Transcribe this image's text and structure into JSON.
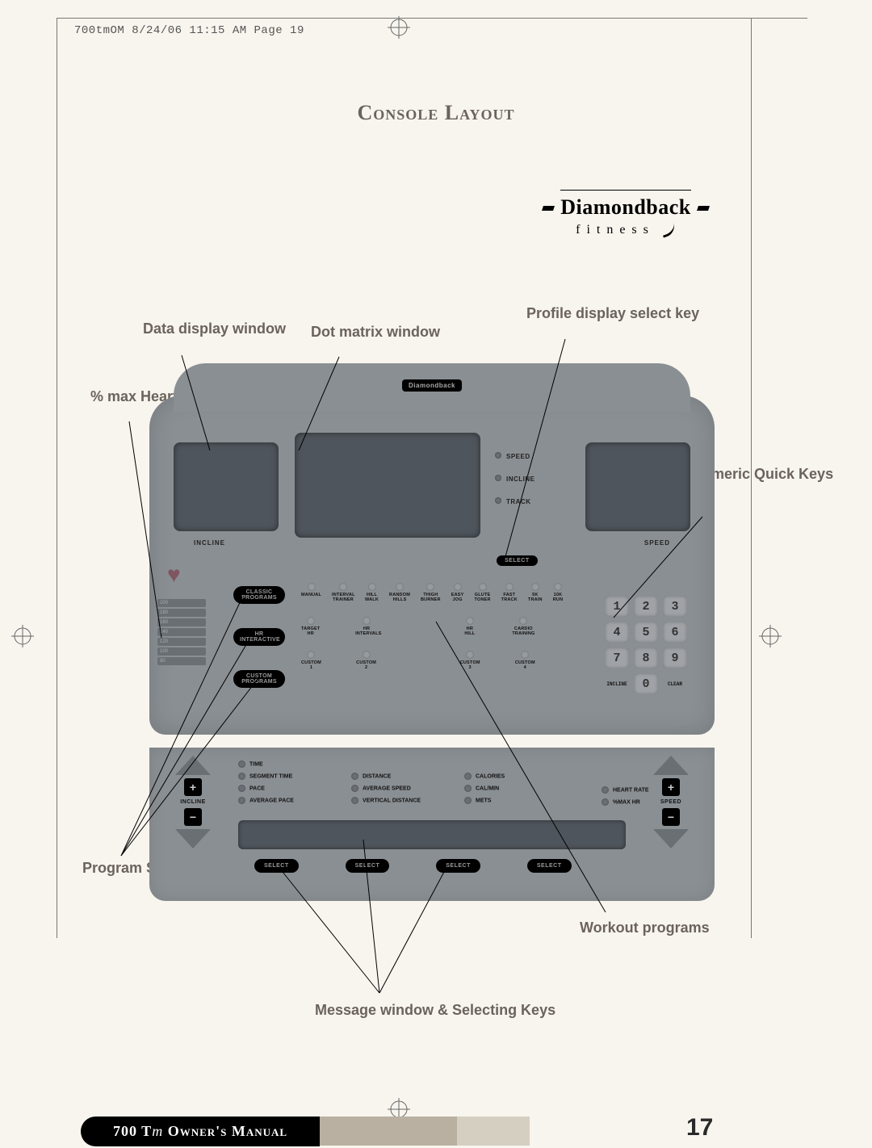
{
  "print_header": "700tmOM  8/24/06  11:15 AM  Page 19",
  "title": "Console Layout",
  "brand": {
    "name": "Diamondback",
    "sub": "fitness"
  },
  "labels": {
    "data_display": "Data display window",
    "dot_matrix": "Dot matrix window",
    "profile": "Profile display select key",
    "max_hr": "% max Heart Rate display",
    "numeric": "Numeric Quick Keys",
    "program_select": "Program Select keys",
    "workout": "Workout programs",
    "message": "Message window & Selecting Keys"
  },
  "console": {
    "badge": "Diamondback",
    "incline_lbl": "INCLINE",
    "speed_lbl": "SPEED",
    "leds": [
      "SPEED",
      "INCLINE",
      "TRACK"
    ],
    "select": "SELECT",
    "stripes": [
      "200",
      "180",
      "160",
      "140",
      "120",
      "100",
      "80"
    ],
    "prog_pills": [
      "CLASSIC PROGRAMS",
      "HR INTERACTIVE",
      "CUSTOM PROGRAMS"
    ],
    "row1": [
      "MANUAL",
      "INTERVAL TRAINER",
      "HILL WALK",
      "RANDOM HILLS",
      "THIGH BURNER",
      "EASY JOG",
      "GLUTE TONER",
      "FAST TRACK",
      "5K TRAIN",
      "10K RUN"
    ],
    "row2": [
      "TARGET HR",
      "",
      "HR INTERVALS",
      "",
      "",
      "",
      "HR HILL",
      "",
      "CARDIO TRAINING",
      ""
    ],
    "row3": [
      "CUSTOM 1",
      "",
      "CUSTOM 2",
      "",
      "",
      "",
      "CUSTOM 3",
      "",
      "CUSTOM 4",
      ""
    ],
    "keypad": [
      "1",
      "2",
      "3",
      "4",
      "5",
      "6",
      "7",
      "8",
      "9",
      "INCLINE",
      "0",
      "CLEAR"
    ]
  },
  "lower": {
    "arrow_l": "INCLINE",
    "arrow_r": "SPEED",
    "metrics_l": [
      "TIME",
      "SEGMENT TIME",
      "PACE",
      "AVERAGE PACE"
    ],
    "metrics_c": [
      "",
      "DISTANCE",
      "AVERAGE SPEED",
      "VERTICAL DISTANCE"
    ],
    "metrics_c2": [
      "",
      "CALORIES",
      "CAL/MIN",
      "METS"
    ],
    "metrics_r": [
      "HEART RATE",
      "%MAX HR"
    ],
    "select": "SELECT"
  },
  "footer": {
    "text_a": "700 T",
    "text_i": "m",
    "text_b": " Owner's Manual",
    "page": "17"
  }
}
